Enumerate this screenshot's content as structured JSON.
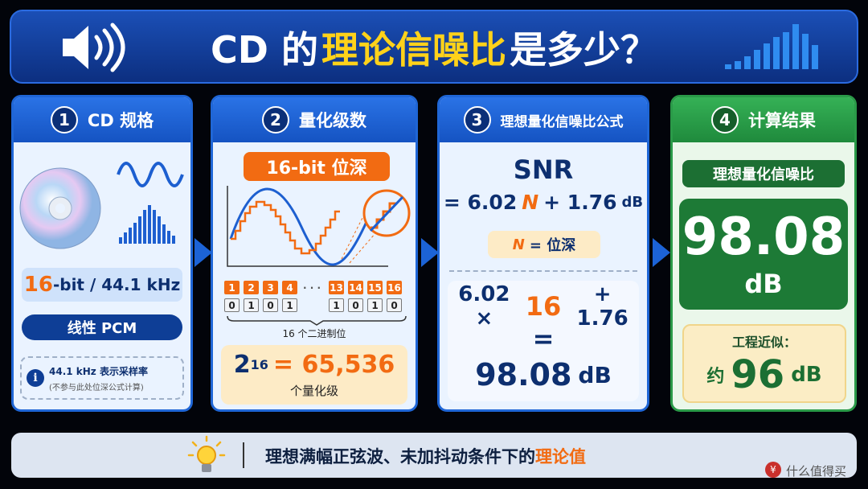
{
  "header": {
    "title_prefix": "CD 的",
    "title_highlight": "理论信噪比",
    "title_suffix": "是多少？"
  },
  "panel_1": {
    "number": "1",
    "title": "CD 规格",
    "spec_bits": "16",
    "spec_rest": "-bit / 44.1 kHz",
    "format": "线性 PCM",
    "note": "44.1 kHz 表示采样率",
    "note_sub": "(不参与此处位深公式计算)"
  },
  "panel_2": {
    "number": "2",
    "title": "量化级数",
    "badge": "16-bit 位深",
    "bit_positions": [
      "1",
      "2",
      "3",
      "4",
      "13",
      "14",
      "15",
      "16"
    ],
    "ellipsis": "· · ·",
    "bits": [
      "0",
      "1",
      "0",
      "1",
      "1",
      "0",
      "1",
      "0"
    ],
    "brace_label": "16 个二进制位",
    "power_base": "2",
    "power_exp": "16",
    "power_result": "= 65,536",
    "levels_label": "个量化级"
  },
  "panel_3": {
    "number": "3",
    "title": "理想量化信噪比公式",
    "formula_label": "SNR",
    "formula_prefix": "= 6.02",
    "formula_var": "N",
    "formula_suffix": "+ 1.76",
    "formula_unit": "dB",
    "var_def_var": "N",
    "var_def_text": "= 位深",
    "calc_a": "6.02 ×",
    "calc_n": "16",
    "calc_b": "+ 1.76",
    "equals": "=",
    "result": "98.08",
    "result_unit": "dB"
  },
  "panel_4": {
    "number": "4",
    "title": "计算结果",
    "subtitle": "理想量化信噪比",
    "value": "98.08",
    "unit": "dB",
    "approx_label": "工程近似：",
    "approx_prefix": "约",
    "approx_value": "96",
    "approx_unit": "dB"
  },
  "footer": {
    "text": "理想满幅正弦波、未加抖动条件下的",
    "highlight": "理论值"
  },
  "watermark": "什么值得买"
}
